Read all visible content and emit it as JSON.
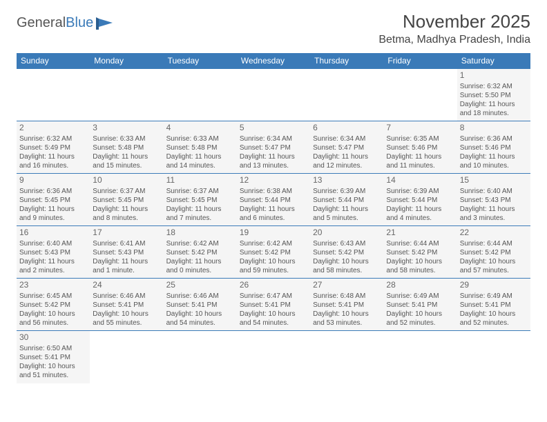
{
  "logo": {
    "general": "General",
    "blue": "Blue"
  },
  "title": "November 2025",
  "location": "Betma, Madhya Pradesh, India",
  "colors": {
    "header_bg": "#3a7ab8",
    "header_fg": "#ffffff",
    "cell_bg": "#f5f5f5",
    "border": "#3a7ab8",
    "text": "#555555"
  },
  "weekdays": [
    "Sunday",
    "Monday",
    "Tuesday",
    "Wednesday",
    "Thursday",
    "Friday",
    "Saturday"
  ],
  "firstDayOffset": 6,
  "daysInMonth": 30,
  "days": {
    "1": {
      "sunrise": "6:32 AM",
      "sunset": "5:50 PM",
      "daylight": "11 hours and 18 minutes."
    },
    "2": {
      "sunrise": "6:32 AM",
      "sunset": "5:49 PM",
      "daylight": "11 hours and 16 minutes."
    },
    "3": {
      "sunrise": "6:33 AM",
      "sunset": "5:48 PM",
      "daylight": "11 hours and 15 minutes."
    },
    "4": {
      "sunrise": "6:33 AM",
      "sunset": "5:48 PM",
      "daylight": "11 hours and 14 minutes."
    },
    "5": {
      "sunrise": "6:34 AM",
      "sunset": "5:47 PM",
      "daylight": "11 hours and 13 minutes."
    },
    "6": {
      "sunrise": "6:34 AM",
      "sunset": "5:47 PM",
      "daylight": "11 hours and 12 minutes."
    },
    "7": {
      "sunrise": "6:35 AM",
      "sunset": "5:46 PM",
      "daylight": "11 hours and 11 minutes."
    },
    "8": {
      "sunrise": "6:36 AM",
      "sunset": "5:46 PM",
      "daylight": "11 hours and 10 minutes."
    },
    "9": {
      "sunrise": "6:36 AM",
      "sunset": "5:45 PM",
      "daylight": "11 hours and 9 minutes."
    },
    "10": {
      "sunrise": "6:37 AM",
      "sunset": "5:45 PM",
      "daylight": "11 hours and 8 minutes."
    },
    "11": {
      "sunrise": "6:37 AM",
      "sunset": "5:45 PM",
      "daylight": "11 hours and 7 minutes."
    },
    "12": {
      "sunrise": "6:38 AM",
      "sunset": "5:44 PM",
      "daylight": "11 hours and 6 minutes."
    },
    "13": {
      "sunrise": "6:39 AM",
      "sunset": "5:44 PM",
      "daylight": "11 hours and 5 minutes."
    },
    "14": {
      "sunrise": "6:39 AM",
      "sunset": "5:44 PM",
      "daylight": "11 hours and 4 minutes."
    },
    "15": {
      "sunrise": "6:40 AM",
      "sunset": "5:43 PM",
      "daylight": "11 hours and 3 minutes."
    },
    "16": {
      "sunrise": "6:40 AM",
      "sunset": "5:43 PM",
      "daylight": "11 hours and 2 minutes."
    },
    "17": {
      "sunrise": "6:41 AM",
      "sunset": "5:43 PM",
      "daylight": "11 hours and 1 minute."
    },
    "18": {
      "sunrise": "6:42 AM",
      "sunset": "5:42 PM",
      "daylight": "11 hours and 0 minutes."
    },
    "19": {
      "sunrise": "6:42 AM",
      "sunset": "5:42 PM",
      "daylight": "10 hours and 59 minutes."
    },
    "20": {
      "sunrise": "6:43 AM",
      "sunset": "5:42 PM",
      "daylight": "10 hours and 58 minutes."
    },
    "21": {
      "sunrise": "6:44 AM",
      "sunset": "5:42 PM",
      "daylight": "10 hours and 58 minutes."
    },
    "22": {
      "sunrise": "6:44 AM",
      "sunset": "5:42 PM",
      "daylight": "10 hours and 57 minutes."
    },
    "23": {
      "sunrise": "6:45 AM",
      "sunset": "5:42 PM",
      "daylight": "10 hours and 56 minutes."
    },
    "24": {
      "sunrise": "6:46 AM",
      "sunset": "5:41 PM",
      "daylight": "10 hours and 55 minutes."
    },
    "25": {
      "sunrise": "6:46 AM",
      "sunset": "5:41 PM",
      "daylight": "10 hours and 54 minutes."
    },
    "26": {
      "sunrise": "6:47 AM",
      "sunset": "5:41 PM",
      "daylight": "10 hours and 54 minutes."
    },
    "27": {
      "sunrise": "6:48 AM",
      "sunset": "5:41 PM",
      "daylight": "10 hours and 53 minutes."
    },
    "28": {
      "sunrise": "6:49 AM",
      "sunset": "5:41 PM",
      "daylight": "10 hours and 52 minutes."
    },
    "29": {
      "sunrise": "6:49 AM",
      "sunset": "5:41 PM",
      "daylight": "10 hours and 52 minutes."
    },
    "30": {
      "sunrise": "6:50 AM",
      "sunset": "5:41 PM",
      "daylight": "10 hours and 51 minutes."
    }
  },
  "labels": {
    "sunrise": "Sunrise:",
    "sunset": "Sunset:",
    "daylight": "Daylight:"
  }
}
